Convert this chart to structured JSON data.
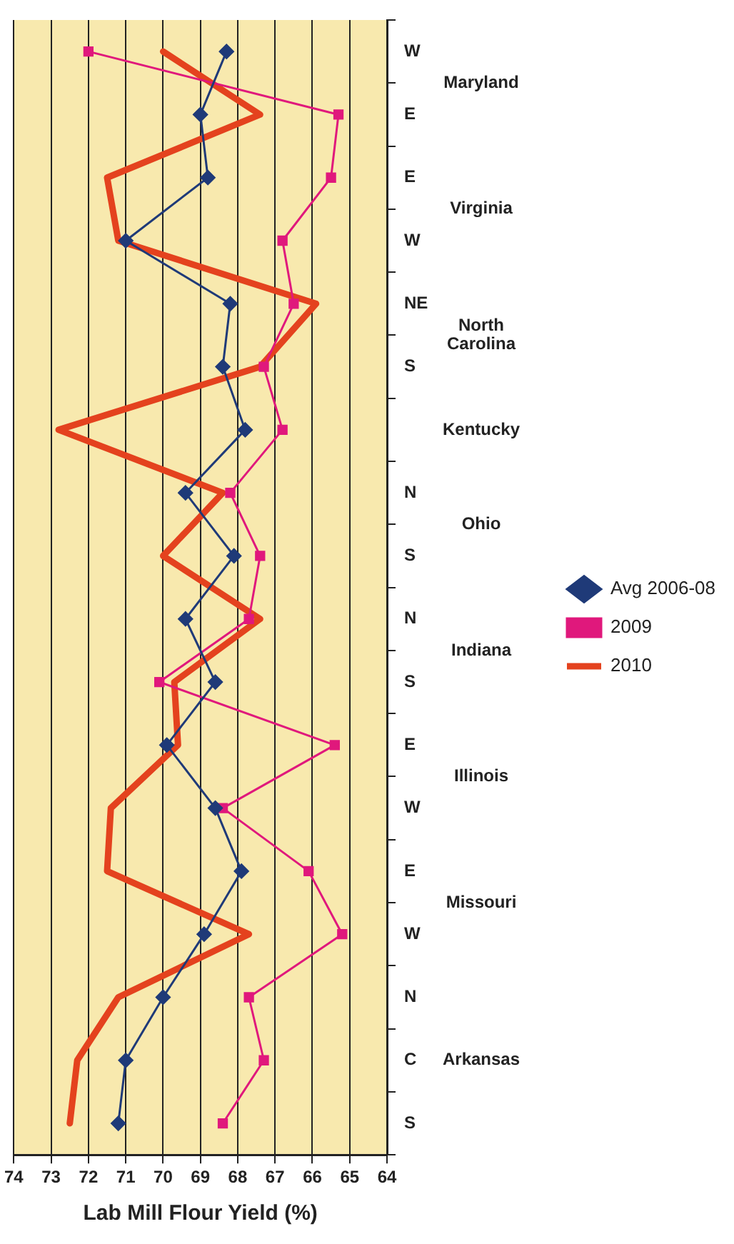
{
  "chart_data": {
    "type": "line",
    "xlabel": "Lab Mill Flour Yield (%)",
    "categories": [
      "W",
      "E",
      "E",
      "W",
      "NE",
      "S",
      null,
      "N",
      "S",
      "N",
      "S",
      "E",
      "W",
      "E",
      "W",
      "N",
      "C",
      "S"
    ],
    "orientation": "horizontal",
    "series": [
      {
        "name": "Avg 2006-08",
        "color": "#1f3a78",
        "marker": "diamond",
        "values": [
          68.3,
          69.0,
          68.8,
          71.0,
          68.2,
          68.4,
          67.8,
          69.4,
          68.1,
          69.4,
          68.6,
          69.9,
          68.6,
          67.9,
          68.9,
          70.0,
          71.0,
          71.2
        ]
      },
      {
        "name": "2009",
        "color": "#e0187c",
        "marker": "square",
        "values": [
          72.0,
          65.3,
          65.5,
          66.8,
          66.5,
          67.3,
          66.8,
          68.2,
          67.4,
          67.7,
          70.1,
          65.4,
          68.4,
          66.1,
          65.2,
          67.7,
          67.3,
          68.4
        ]
      },
      {
        "name": "2010",
        "color": "#e4421e",
        "marker": "none",
        "values": [
          70.0,
          67.4,
          71.5,
          71.2,
          65.9,
          67.4,
          72.8,
          68.4,
          70.0,
          67.4,
          69.7,
          69.6,
          71.4,
          71.5,
          67.7,
          71.2,
          72.3,
          72.5
        ]
      }
    ],
    "xlim": [
      74,
      64
    ],
    "xticks": [
      74,
      73,
      72,
      71,
      70,
      69,
      68,
      67,
      66,
      65,
      64
    ],
    "grid": "x",
    "legend": "right",
    "annotations": [
      "Maryland",
      "Virginia",
      "North Carolina",
      "Kentucky",
      "Ohio",
      "Indiana",
      "Illinois",
      "Missouri",
      "Arkansas"
    ]
  }
}
